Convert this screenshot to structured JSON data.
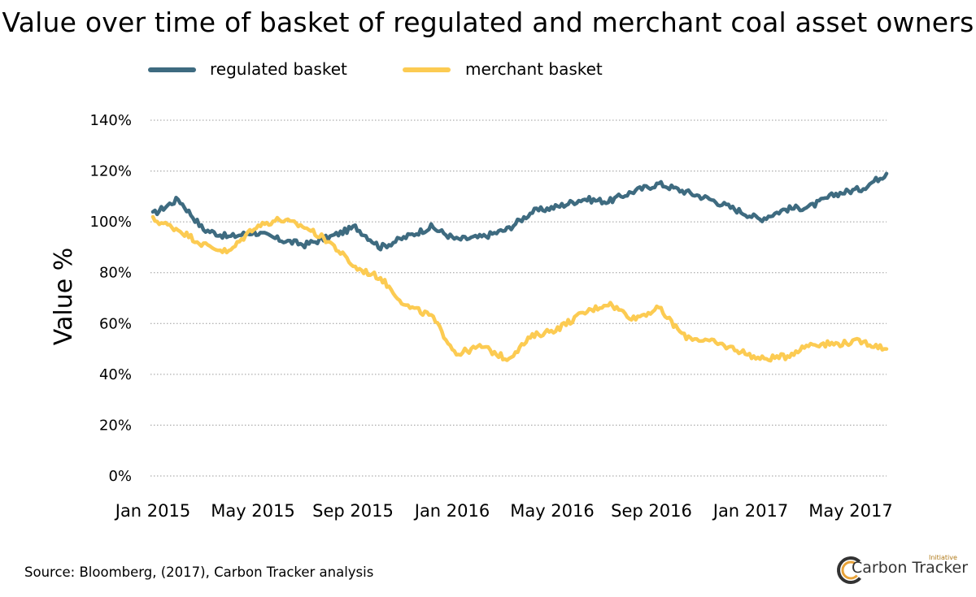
{
  "title": "Value over time of basket of regulated and merchant coal asset owners",
  "source": "Source: Bloomberg, (2017), Carbon Tracker analysis",
  "logo": {
    "name": "Carbon Tracker",
    "tagline": "Initiative"
  },
  "colors": {
    "regulated": "#3e6b80",
    "merchant": "#fccb52",
    "grid": "#9a9a9a"
  },
  "chart_data": {
    "type": "line",
    "title": "Value over time of basket of regulated and merchant coal asset owners",
    "xlabel": "",
    "ylabel": "Value %",
    "ylim": [
      0,
      140
    ],
    "y_ticks": [
      "0%",
      "20%",
      "40%",
      "60%",
      "80%",
      "100%",
      "120%",
      "140%"
    ],
    "x_ticks": [
      "Jan 2015",
      "May 2015",
      "Sep 2015",
      "Jan 2016",
      "May 2016",
      "Sep 2016",
      "Jan 2017",
      "May 2017"
    ],
    "grid": "horizontal dotted",
    "legend": "top",
    "x": [
      "2015-01",
      "2015-02",
      "2015-03",
      "2015-04",
      "2015-05",
      "2015-06",
      "2015-07",
      "2015-08",
      "2015-09",
      "2015-10",
      "2015-11",
      "2015-12",
      "2016-01",
      "2016-02",
      "2016-03",
      "2016-04",
      "2016-05",
      "2016-06",
      "2016-07",
      "2016-08",
      "2016-09",
      "2016-10",
      "2016-11",
      "2016-12",
      "2017-01",
      "2017-02",
      "2017-03",
      "2017-04",
      "2017-05",
      "2017-06"
    ],
    "series": [
      {
        "name": "regulated basket",
        "color": "#3e6b80",
        "values": [
          103,
          109,
          97,
          94,
          96,
          93,
          91,
          94,
          98,
          90,
          94,
          98,
          93,
          94,
          97,
          104,
          106,
          109,
          108,
          112,
          115,
          112,
          109,
          105,
          101,
          105,
          106,
          111,
          113,
          119
        ]
      },
      {
        "name": "merchant basket",
        "color": "#fccb52",
        "values": [
          101,
          97,
          91,
          88,
          98,
          101,
          98,
          92,
          82,
          78,
          67,
          63,
          48,
          51,
          46,
          55,
          58,
          64,
          68,
          62,
          66,
          55,
          53,
          50,
          46,
          47,
          52,
          52,
          53,
          50
        ]
      }
    ]
  }
}
